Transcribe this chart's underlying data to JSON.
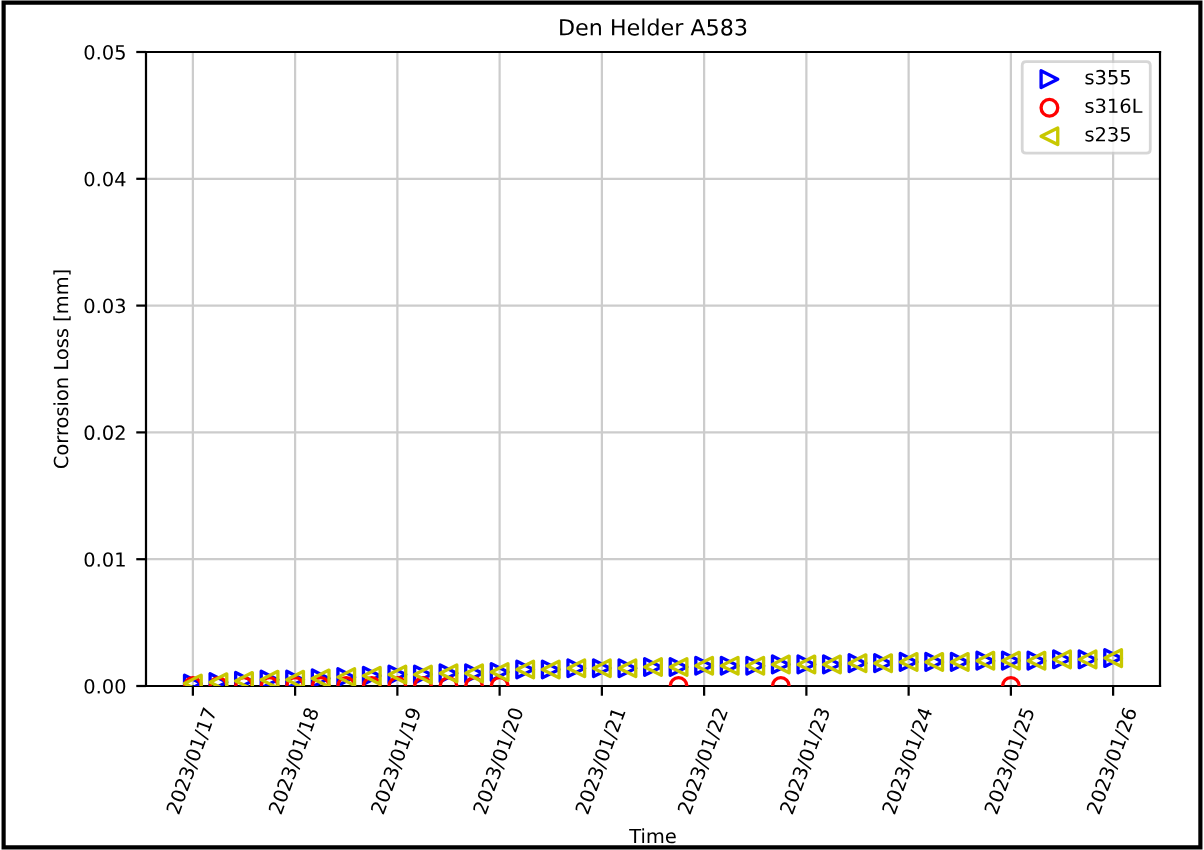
{
  "chart_data": {
    "type": "scatter",
    "title": "Den Helder A583",
    "xlabel": "Time",
    "ylabel": "Corrosion Loss [mm]",
    "x": [
      "2023-01-17T00:00",
      "2023-01-17T06:00",
      "2023-01-17T12:00",
      "2023-01-17T18:00",
      "2023-01-18T00:00",
      "2023-01-18T06:00",
      "2023-01-18T12:00",
      "2023-01-18T18:00",
      "2023-01-19T00:00",
      "2023-01-19T06:00",
      "2023-01-19T12:00",
      "2023-01-19T18:00",
      "2023-01-20T00:00",
      "2023-01-20T06:00",
      "2023-01-20T12:00",
      "2023-01-20T18:00",
      "2023-01-21T00:00",
      "2023-01-21T06:00",
      "2023-01-21T12:00",
      "2023-01-21T18:00",
      "2023-01-22T00:00",
      "2023-01-22T06:00",
      "2023-01-22T12:00",
      "2023-01-22T18:00",
      "2023-01-23T00:00",
      "2023-01-23T06:00",
      "2023-01-23T12:00",
      "2023-01-23T18:00",
      "2023-01-24T00:00",
      "2023-01-24T06:00",
      "2023-01-24T12:00",
      "2023-01-24T18:00",
      "2023-01-25T00:00",
      "2023-01-25T06:00",
      "2023-01-25T12:00",
      "2023-01-25T18:00",
      "2023-01-26T00:00"
    ],
    "series": [
      {
        "name": "s355",
        "color": "#0000ff",
        "marker": "triangle-right",
        "values": [
          0.0002,
          0.0003,
          0.0004,
          0.0005,
          0.0005,
          0.0006,
          0.0007,
          0.0008,
          0.0009,
          0.0009,
          0.001,
          0.001,
          0.0011,
          0.0013,
          0.0013,
          0.0014,
          0.0014,
          0.0014,
          0.0015,
          0.0015,
          0.0016,
          0.0016,
          0.0016,
          0.0017,
          0.0017,
          0.0017,
          0.0018,
          0.0018,
          0.0019,
          0.0019,
          0.0019,
          0.002,
          0.002,
          0.002,
          0.0021,
          0.0021,
          0.0022
        ]
      },
      {
        "name": "s316L",
        "color": "#ff0000",
        "marker": "circle",
        "values": [
          0.0,
          0.0,
          0.0,
          0.0,
          0.0,
          0.0,
          0.0,
          0.0,
          0.0,
          0.0,
          0.0,
          0.0,
          0.0,
          null,
          null,
          null,
          null,
          null,
          null,
          0.0,
          null,
          null,
          null,
          0.0,
          null,
          null,
          null,
          null,
          null,
          null,
          null,
          null,
          0.0,
          null,
          null,
          null,
          null
        ]
      },
      {
        "name": "s235",
        "color": "#c8c800",
        "marker": "triangle-left",
        "values": [
          0.0002,
          0.0003,
          0.0004,
          0.0005,
          0.0005,
          0.0006,
          0.0007,
          0.0008,
          0.0009,
          0.0009,
          0.001,
          0.001,
          0.0011,
          0.0013,
          0.0013,
          0.0014,
          0.0014,
          0.0014,
          0.0015,
          0.0015,
          0.0016,
          0.0016,
          0.0016,
          0.0017,
          0.0017,
          0.0017,
          0.0018,
          0.0018,
          0.0019,
          0.0019,
          0.0019,
          0.002,
          0.002,
          0.002,
          0.0021,
          0.0021,
          0.0022
        ]
      }
    ],
    "xlim": [
      "2023-01-16T13:00",
      "2023-01-26T11:00"
    ],
    "xticks": [
      {
        "value": "2023-01-17",
        "label": "2023/01/17"
      },
      {
        "value": "2023-01-18",
        "label": "2023/01/18"
      },
      {
        "value": "2023-01-19",
        "label": "2023/01/19"
      },
      {
        "value": "2023-01-20",
        "label": "2023/01/20"
      },
      {
        "value": "2023-01-21",
        "label": "2023/01/21"
      },
      {
        "value": "2023-01-22",
        "label": "2023/01/22"
      },
      {
        "value": "2023-01-23",
        "label": "2023/01/23"
      },
      {
        "value": "2023-01-24",
        "label": "2023/01/24"
      },
      {
        "value": "2023-01-25",
        "label": "2023/01/25"
      },
      {
        "value": "2023-01-26",
        "label": "2023/01/26"
      }
    ],
    "ylim": [
      0,
      0.05
    ],
    "yticks": [
      {
        "value": 0,
        "label": "0.00"
      },
      {
        "value": 0.01,
        "label": "0.01"
      },
      {
        "value": 0.02,
        "label": "0.02"
      },
      {
        "value": 0.03,
        "label": "0.03"
      },
      {
        "value": 0.04,
        "label": "0.04"
      },
      {
        "value": 0.05,
        "label": "0.05"
      }
    ],
    "grid": true,
    "legend": "top right"
  }
}
